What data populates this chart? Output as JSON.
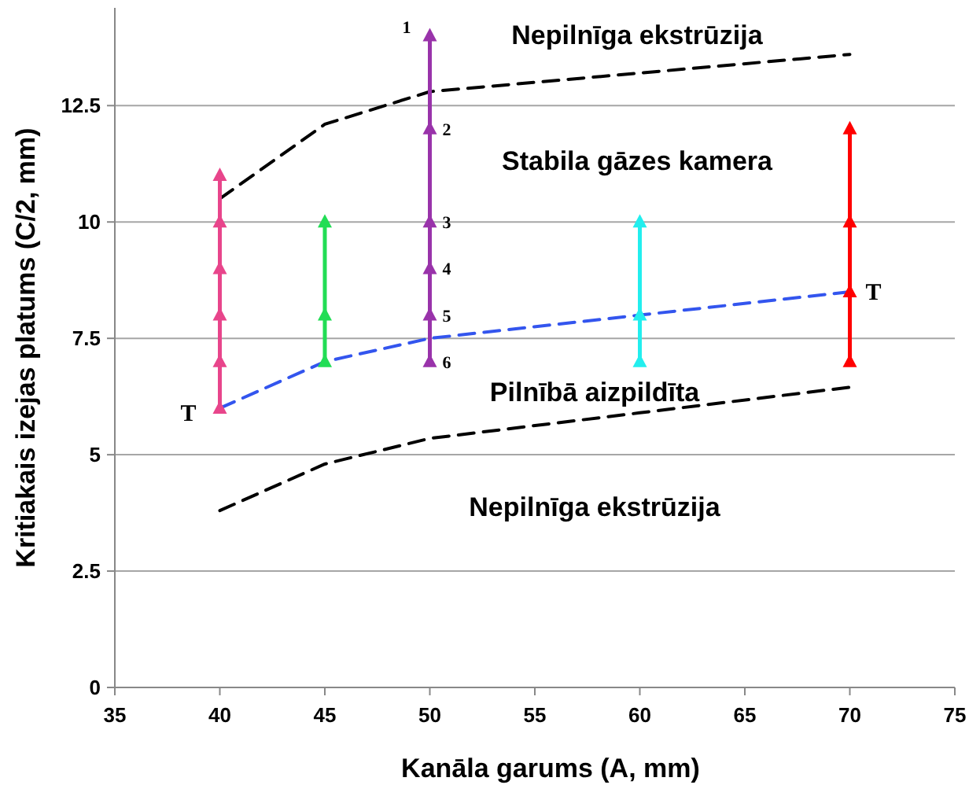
{
  "chart_data": {
    "type": "line",
    "xlabel": "Kanāla garums (A, mm)",
    "ylabel": "Kritiakais izejas platums (C/2, mm)",
    "xlim": [
      35,
      75
    ],
    "xticks": [
      35,
      40,
      45,
      50,
      55,
      60,
      65,
      70,
      75
    ],
    "ylim": [
      0,
      14.6
    ],
    "yticks": [
      0,
      2.5,
      5,
      7.5,
      10,
      12.5
    ],
    "grid": "y",
    "series": [
      {
        "color": "#000000",
        "x": [
          40,
          45,
          50,
          60,
          70
        ],
        "values": [
          10.5,
          12.1,
          12.8,
          13.2,
          13.6
        ],
        "line_style": "dashed",
        "marker": "none"
      },
      {
        "color": "#000000",
        "x": [
          40,
          45,
          50,
          60,
          70
        ],
        "values": [
          3.8,
          4.8,
          5.35,
          5.9,
          6.45
        ],
        "line_style": "dashed",
        "marker": "none"
      },
      {
        "color": "#3355ee",
        "x": [
          40,
          45,
          50,
          60,
          70
        ],
        "values": [
          6,
          7,
          7.5,
          8,
          8.5
        ],
        "line_style": "dashed",
        "marker": "none"
      },
      {
        "color": "#e8458b",
        "x": [
          40,
          40,
          40,
          40,
          40,
          40
        ],
        "values": [
          6,
          7,
          8,
          9,
          10,
          11
        ],
        "line_style": "solid",
        "marker": "triangle"
      },
      {
        "color": "#22dd55",
        "x": [
          45,
          45,
          45
        ],
        "values": [
          7,
          8,
          10
        ],
        "line_style": "solid",
        "marker": "triangle"
      },
      {
        "color": "#9933aa",
        "x": [
          50,
          50,
          50,
          50,
          50,
          50
        ],
        "values": [
          7,
          8,
          9,
          10,
          12,
          14
        ],
        "line_style": "solid",
        "marker": "triangle"
      },
      {
        "color": "#22eeee",
        "x": [
          60,
          60,
          60
        ],
        "values": [
          7,
          8,
          10
        ],
        "line_style": "solid",
        "marker": "triangle"
      },
      {
        "color": "#ff0000",
        "x": [
          70,
          70,
          70,
          70
        ],
        "values": [
          7,
          8.5,
          10,
          12
        ],
        "line_style": "solid",
        "marker": "triangle"
      }
    ],
    "annotations": [
      "Nepilnīga ekstrūzija",
      "Stabila gāzes kamera",
      "Pilnībā aizpildīta",
      "Nepilnīga ekstrūzija",
      {
        "text": "1",
        "x": 50,
        "y": 14
      },
      {
        "text": "2",
        "x": 50,
        "y": 12
      },
      {
        "text": "3",
        "x": 50,
        "y": 10
      },
      {
        "text": "4",
        "x": 50,
        "y": 9
      },
      {
        "text": "5",
        "x": 50,
        "y": 8
      },
      {
        "text": "6",
        "x": 50,
        "y": 7
      },
      {
        "text": "T",
        "x": 40,
        "y": 6
      },
      {
        "text": "T",
        "x": 70,
        "y": 8.5
      }
    ]
  }
}
